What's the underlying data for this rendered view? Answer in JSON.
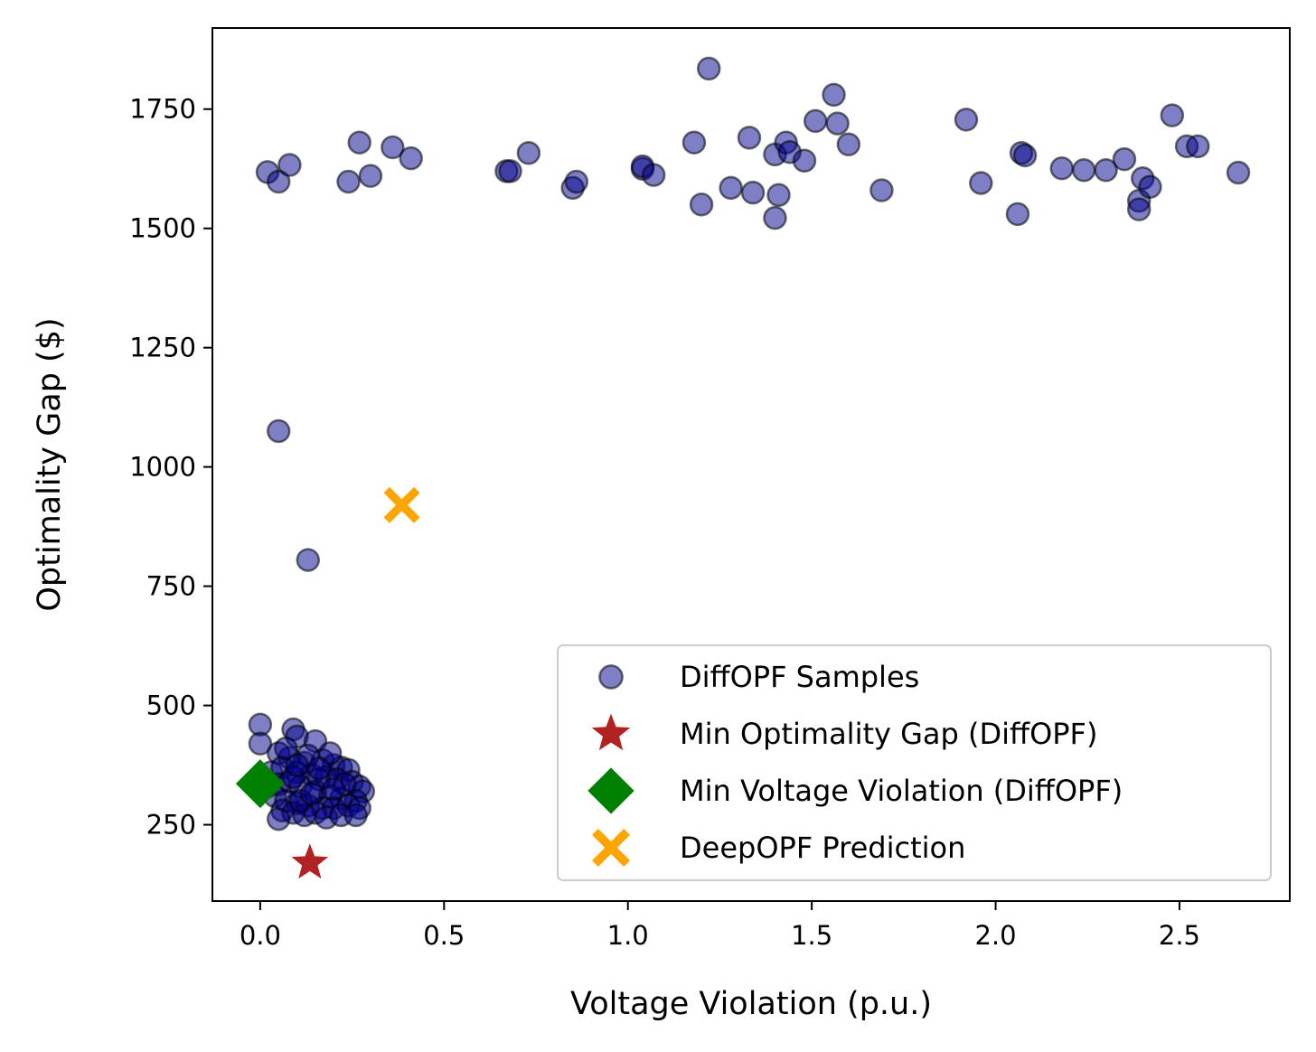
{
  "chart_data": {
    "type": "scatter",
    "title": "",
    "xlabel": "Voltage Violation (p.u.)",
    "ylabel": "Optimality Gap ($)",
    "xlim": [
      -0.13,
      2.8
    ],
    "ylim": [
      90,
      1920
    ],
    "xticks": [
      0.0,
      0.5,
      1.0,
      1.5,
      2.0,
      2.5
    ],
    "xtick_labels": [
      "0.0",
      "0.5",
      "1.0",
      "1.5",
      "2.0",
      "2.5"
    ],
    "yticks": [
      250,
      500,
      750,
      1000,
      1250,
      1500,
      1750
    ],
    "ytick_labels": [
      "250",
      "500",
      "750",
      "1000",
      "1250",
      "1500",
      "1750"
    ],
    "grid": false,
    "legend_position": "lower-right",
    "colors": {
      "samples_fill": "#00008b",
      "samples_edge": "#000000",
      "min_gap": "#b22222",
      "min_voltage": "#008000",
      "deepopf": "#ffa500"
    },
    "series": [
      {
        "name": "DiffOPF Samples",
        "marker": "circle",
        "points": [
          [
            0.02,
            1618
          ],
          [
            0.05,
            1598
          ],
          [
            0.08,
            1633
          ],
          [
            0.24,
            1598
          ],
          [
            0.27,
            1680
          ],
          [
            0.3,
            1610
          ],
          [
            0.36,
            1670
          ],
          [
            0.41,
            1647
          ],
          [
            0.67,
            1620
          ],
          [
            0.68,
            1620
          ],
          [
            0.73,
            1658
          ],
          [
            0.85,
            1585
          ],
          [
            0.86,
            1598
          ],
          [
            1.04,
            1625
          ],
          [
            1.04,
            1630
          ],
          [
            1.07,
            1612
          ],
          [
            1.18,
            1680
          ],
          [
            1.2,
            1550
          ],
          [
            1.22,
            1835
          ],
          [
            1.28,
            1585
          ],
          [
            1.33,
            1690
          ],
          [
            1.34,
            1575
          ],
          [
            1.4,
            1655
          ],
          [
            1.4,
            1522
          ],
          [
            1.41,
            1570
          ],
          [
            1.43,
            1680
          ],
          [
            1.44,
            1660
          ],
          [
            1.48,
            1642
          ],
          [
            1.51,
            1725
          ],
          [
            1.56,
            1780
          ],
          [
            1.57,
            1720
          ],
          [
            1.6,
            1676
          ],
          [
            1.69,
            1580
          ],
          [
            1.92,
            1728
          ],
          [
            1.96,
            1595
          ],
          [
            2.06,
            1530
          ],
          [
            2.07,
            1658
          ],
          [
            2.08,
            1653
          ],
          [
            2.18,
            1626
          ],
          [
            2.24,
            1622
          ],
          [
            2.3,
            1622
          ],
          [
            2.35,
            1645
          ],
          [
            2.39,
            1558
          ],
          [
            2.39,
            1540
          ],
          [
            2.4,
            1605
          ],
          [
            2.42,
            1587
          ],
          [
            2.48,
            1737
          ],
          [
            2.52,
            1672
          ],
          [
            2.55,
            1672
          ],
          [
            2.66,
            1617
          ],
          [
            0.05,
            1075
          ],
          [
            0.13,
            805
          ],
          [
            0.0,
            460
          ],
          [
            0.0,
            420
          ],
          [
            0.09,
            450
          ],
          [
            0.1,
            435
          ],
          [
            0.15,
            425
          ],
          [
            0.05,
            400
          ],
          [
            0.08,
            390
          ],
          [
            0.12,
            380
          ],
          [
            0.17,
            385
          ],
          [
            0.2,
            375
          ],
          [
            0.22,
            370
          ],
          [
            0.24,
            365
          ],
          [
            0.03,
            360
          ],
          [
            0.06,
            370
          ],
          [
            0.1,
            360
          ],
          [
            0.14,
            355
          ],
          [
            0.18,
            350
          ],
          [
            0.21,
            345
          ],
          [
            0.25,
            340
          ],
          [
            0.27,
            330
          ],
          [
            0.28,
            320
          ],
          [
            0.02,
            330
          ],
          [
            0.05,
            335
          ],
          [
            0.08,
            340
          ],
          [
            0.11,
            330
          ],
          [
            0.15,
            320
          ],
          [
            0.19,
            310
          ],
          [
            0.22,
            305
          ],
          [
            0.26,
            300
          ],
          [
            0.04,
            310
          ],
          [
            0.07,
            300
          ],
          [
            0.1,
            295
          ],
          [
            0.13,
            290
          ],
          [
            0.17,
            285
          ],
          [
            0.2,
            285
          ],
          [
            0.24,
            290
          ],
          [
            0.27,
            285
          ],
          [
            0.06,
            280
          ],
          [
            0.09,
            275
          ],
          [
            0.12,
            270
          ],
          [
            0.15,
            275
          ],
          [
            0.18,
            265
          ],
          [
            0.22,
            270
          ],
          [
            0.26,
            270
          ],
          [
            0.05,
            262
          ],
          [
            0.11,
            300
          ],
          [
            0.16,
            345
          ],
          [
            0.13,
            395
          ],
          [
            0.07,
            410
          ],
          [
            0.19,
            400
          ],
          [
            0.14,
            315
          ],
          [
            0.09,
            350
          ],
          [
            0.23,
            335
          ],
          [
            0.16,
            368
          ],
          [
            0.1,
            375
          ],
          [
            0.2,
            325
          ]
        ]
      },
      {
        "name": "Min Optimality Gap (DiffOPF)",
        "marker": "star",
        "points": [
          [
            0.135,
            170
          ]
        ]
      },
      {
        "name": "Min Voltage Violation (DiffOPF)",
        "marker": "diamond",
        "points": [
          [
            0.0,
            336
          ]
        ]
      },
      {
        "name": "DeepOPF Prediction",
        "marker": "x",
        "points": [
          [
            0.385,
            920
          ]
        ]
      }
    ]
  }
}
